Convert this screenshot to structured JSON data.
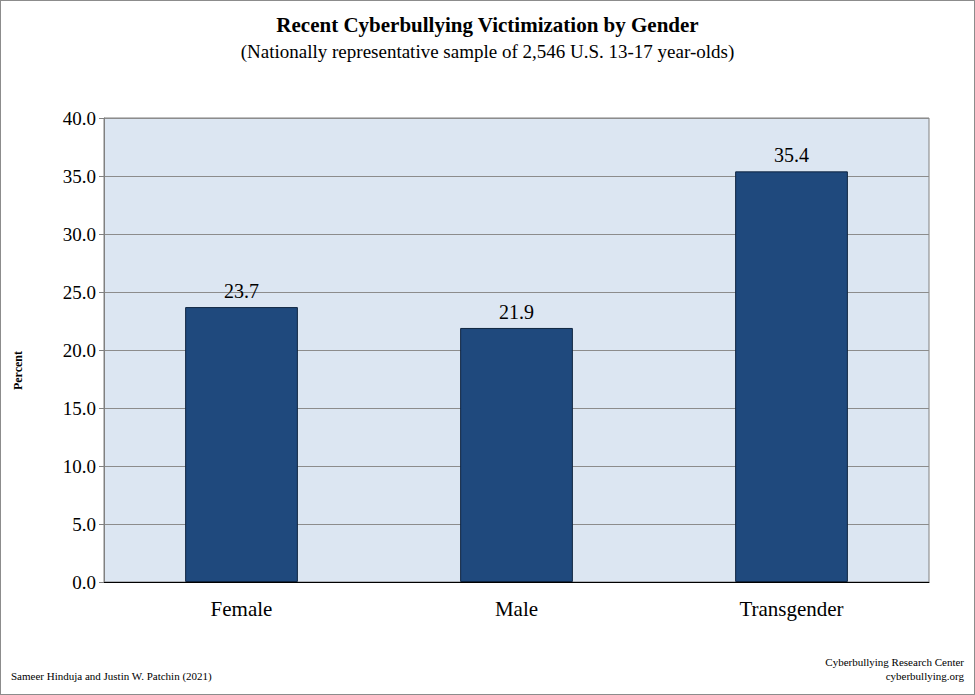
{
  "chart_data": {
    "type": "bar",
    "title": "Recent Cyberbullying Victimization by Gender",
    "subtitle": "(Nationally representative sample of 2,546 U.S. 13-17 year-olds)",
    "y_label": "Percent",
    "categories": [
      "Female",
      "Male",
      "Transgender"
    ],
    "values": [
      23.7,
      21.9,
      35.4
    ],
    "color": "#1f497d",
    "ylim": [
      0,
      40
    ],
    "yticks": [
      {
        "value": 0,
        "label": "0.0"
      },
      {
        "value": 5,
        "label": "5.0"
      },
      {
        "value": 10,
        "label": "10.0"
      },
      {
        "value": 15,
        "label": "15.0"
      },
      {
        "value": 20,
        "label": "20.0"
      },
      {
        "value": 25,
        "label": "25.0"
      },
      {
        "value": 30,
        "label": "30.0"
      },
      {
        "value": 35,
        "label": "35.0"
      },
      {
        "value": 40,
        "label": "40.0"
      }
    ],
    "grid": true,
    "data_labels": true,
    "annotations": [
      "Sameer Hinduja and Justin W. Patchin (2021)",
      "Cyberbullying Research Center",
      "cyberbullying.org"
    ]
  }
}
